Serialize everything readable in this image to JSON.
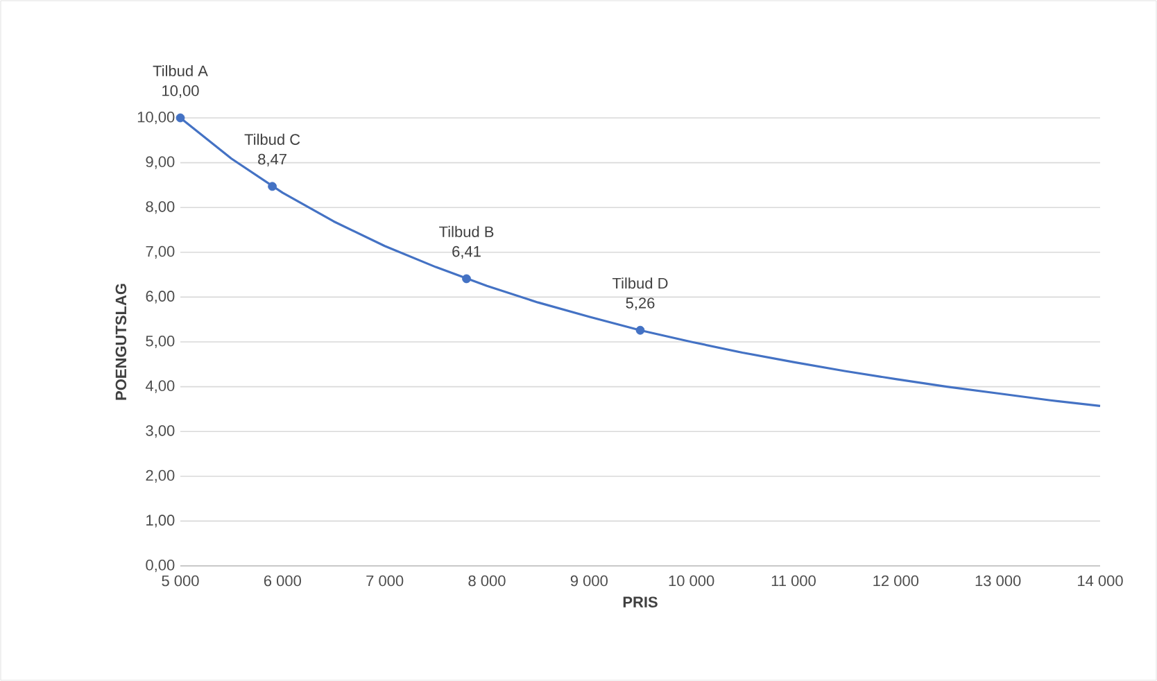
{
  "chart_data": {
    "type": "line",
    "xlabel": "PRIS",
    "ylabel": "POENGUTSLAG",
    "xlim": [
      5000,
      14000
    ],
    "xticks": [
      {
        "value": 5000,
        "label": "5 000"
      },
      {
        "value": 6000,
        "label": "6 000"
      },
      {
        "value": 7000,
        "label": "7 000"
      },
      {
        "value": 8000,
        "label": "8 000"
      },
      {
        "value": 9000,
        "label": "9 000"
      },
      {
        "value": 10000,
        "label": "10 000"
      },
      {
        "value": 11000,
        "label": "11 000"
      },
      {
        "value": 12000,
        "label": "12 000"
      },
      {
        "value": 13000,
        "label": "13 000"
      },
      {
        "value": 14000,
        "label": "14 000"
      }
    ],
    "ylim": [
      0,
      10
    ],
    "yticks": [
      {
        "value": 0,
        "label": "0,00"
      },
      {
        "value": 1,
        "label": "1,00"
      },
      {
        "value": 2,
        "label": "2,00"
      },
      {
        "value": 3,
        "label": "3,00"
      },
      {
        "value": 4,
        "label": "4,00"
      },
      {
        "value": 5,
        "label": "5,00"
      },
      {
        "value": 6,
        "label": "6,00"
      },
      {
        "value": 7,
        "label": "7,00"
      },
      {
        "value": 8,
        "label": "8,00"
      },
      {
        "value": 9,
        "label": "9,00"
      },
      {
        "value": 10,
        "label": "10,00"
      }
    ],
    "grid": "y",
    "series": [
      {
        "color": "#4472c4",
        "marker": "none",
        "line_style": "solid",
        "x": [
          5000,
          5500,
          6000,
          6500,
          7000,
          7500,
          8000,
          8500,
          9000,
          9500,
          10000,
          10500,
          11000,
          11500,
          12000,
          12500,
          13000,
          13500,
          14000
        ],
        "values": [
          10.0,
          9.09,
          8.33,
          7.69,
          7.14,
          6.67,
          6.25,
          5.88,
          5.56,
          5.26,
          5.0,
          4.76,
          4.55,
          4.35,
          4.17,
          4.0,
          3.85,
          3.7,
          3.57
        ]
      },
      {
        "type": "scatter",
        "color": "#4472c4",
        "marker": "circle",
        "x": [
          5000,
          5900,
          7800,
          9500
        ],
        "values": [
          10.0,
          8.47,
          6.41,
          5.26
        ],
        "value_labels": [
          "10,00",
          "8,47",
          "6,41",
          "5,26"
        ]
      }
    ],
    "annotations": [
      {
        "text": "Tilbud A",
        "x": 5000,
        "y": 10.0
      },
      {
        "text": "Tilbud C",
        "x": 5900,
        "y": 8.47
      },
      {
        "text": "Tilbud B",
        "x": 7800,
        "y": 6.41
      },
      {
        "text": "Tilbud D",
        "x": 9500,
        "y": 5.26
      }
    ]
  }
}
